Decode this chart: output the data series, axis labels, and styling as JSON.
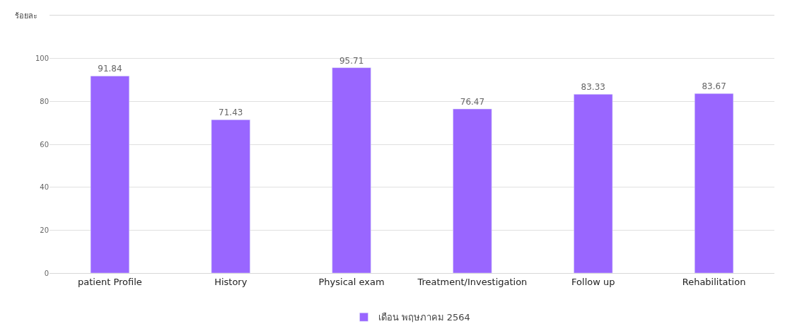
{
  "chart_data": {
    "type": "bar",
    "ylabel": "ร้อยละ",
    "categories": [
      "patient Profile",
      "History",
      "Physical exam",
      "Treatment/Investigation",
      "Follow up",
      "Rehabilitation"
    ],
    "series": [
      {
        "name": "เดือน พฤษภาคม 2564",
        "color": "#9966ff",
        "values": [
          91.84,
          71.43,
          95.71,
          76.47,
          83.33,
          83.67
        ]
      }
    ],
    "ylim": [
      0,
      120
    ],
    "yticks": [
      0,
      20,
      40,
      60,
      80,
      100,
      {
        "value": 120,
        "label": null
      }
    ],
    "grid": "y",
    "legend": "bottom",
    "data_labels": true
  }
}
